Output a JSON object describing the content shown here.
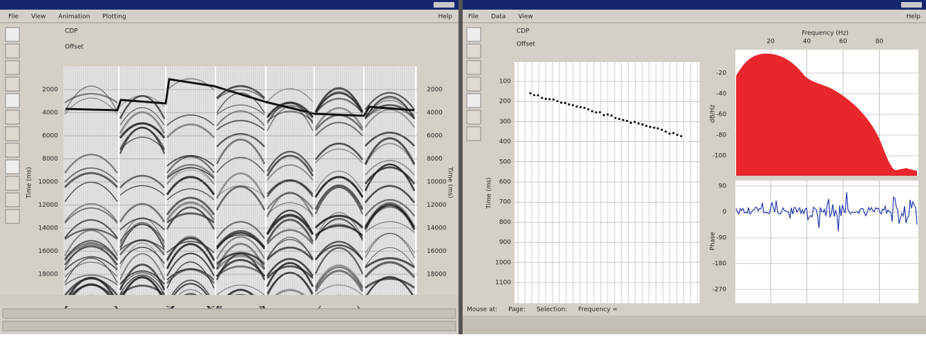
{
  "left_window": {
    "menu": [
      "File",
      "View",
      "Animation",
      "Plotting"
    ],
    "help": "Help",
    "header_labels": [
      "CDP",
      "Offset"
    ],
    "time_ticks": [
      "2000",
      "4000",
      "6000",
      "8000",
      "10000",
      "12000",
      "14000",
      "16000",
      "18000"
    ],
    "axis_label": "Time (ms)"
  },
  "right_window": {
    "menu": [
      "File",
      "Data",
      "View"
    ],
    "help": "Help",
    "header_labels": [
      "CDP",
      "Offset"
    ],
    "time_ticks": [
      "100",
      "200",
      "300",
      "400",
      "500",
      "600",
      "700",
      "800",
      "900",
      "1000",
      "1100"
    ],
    "time_axis_label": "Time (ms)",
    "frequency_label": "Frequency (Hz)",
    "frequency_ticks": [
      "20",
      "40",
      "60",
      "80"
    ],
    "amplitude_label": "dB/Hz",
    "amplitude_ticks": [
      "-20",
      "-40",
      "-60",
      "-80",
      "-100"
    ],
    "phase_label": "Phase",
    "phase_ticks": [
      "90",
      "0",
      "-90",
      "-180",
      "-270"
    ],
    "status": [
      "Mouse at:",
      "Page:",
      "Selection:",
      "Frequency ="
    ]
  }
}
